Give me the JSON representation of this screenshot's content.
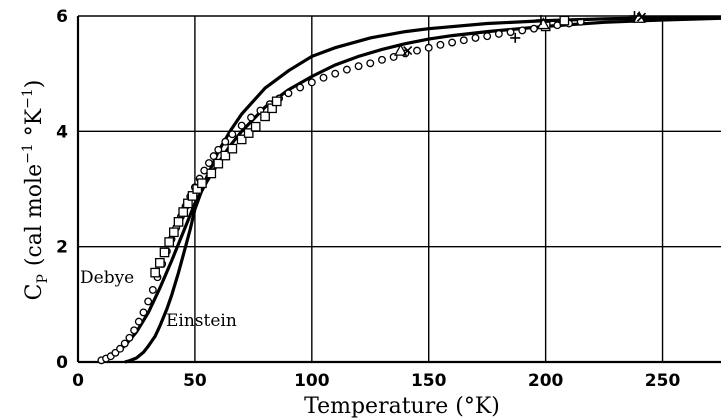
{
  "chart_data": {
    "type": "scatter",
    "title": "",
    "xlabel": "Temperature (°K)",
    "ylabel": "C",
    "ylabel_subscript": "P",
    "ylabel_units": "(cal mole",
    "ylabel_exp1": "−1",
    "ylabel_mid": " °K",
    "ylabel_exp2": "−1",
    "ylabel_close": ")",
    "xlim": [
      0,
      275
    ],
    "ylim": [
      0,
      6
    ],
    "xticks": [
      0,
      50,
      100,
      150,
      200,
      250
    ],
    "yticks": [
      0,
      2,
      4,
      6
    ],
    "grid": true,
    "curve_labels": {
      "debye": "Debye",
      "einstein": "Einstein"
    },
    "series": [
      {
        "name": "Debye",
        "kind": "line",
        "x": [
          10,
          15,
          20,
          25,
          30,
          35,
          40,
          45,
          50,
          55,
          60,
          65,
          70,
          80,
          90,
          100,
          110,
          120,
          130,
          140,
          150,
          160,
          175,
          200,
          225,
          250,
          275
        ],
        "y": [
          0.04,
          0.12,
          0.28,
          0.52,
          0.85,
          1.28,
          1.75,
          2.25,
          2.75,
          3.12,
          3.45,
          3.75,
          4.0,
          4.42,
          4.72,
          4.95,
          5.15,
          5.3,
          5.42,
          5.52,
          5.6,
          5.66,
          5.73,
          5.82,
          5.89,
          5.93,
          5.96
        ]
      },
      {
        "name": "Einstein",
        "kind": "line",
        "x": [
          20,
          22,
          25,
          28,
          30,
          33,
          35,
          38,
          40,
          43,
          45,
          48,
          50,
          55,
          60,
          65,
          70,
          80,
          90,
          100,
          110,
          125,
          140,
          150,
          175,
          200,
          225,
          250,
          275
        ],
        "y": [
          0.0,
          0.02,
          0.07,
          0.17,
          0.27,
          0.45,
          0.62,
          0.92,
          1.15,
          1.55,
          1.85,
          2.3,
          2.65,
          3.2,
          3.65,
          4.0,
          4.3,
          4.75,
          5.05,
          5.3,
          5.45,
          5.62,
          5.73,
          5.78,
          5.87,
          5.92,
          5.95,
          5.97,
          5.98
        ]
      },
      {
        "name": "circles",
        "kind": "marker",
        "marker": "circle",
        "x": [
          10,
          12,
          14,
          16,
          18,
          20,
          22,
          24,
          26,
          28,
          30,
          32,
          34,
          36,
          38,
          40,
          42,
          44,
          46,
          48,
          50,
          52,
          54,
          56,
          58,
          60,
          63,
          66,
          70,
          74,
          78,
          82,
          86,
          90,
          95,
          100,
          105,
          110,
          115,
          120,
          125,
          130,
          135,
          140,
          145,
          150,
          155,
          160,
          165,
          170,
          175,
          180,
          185,
          190,
          195,
          200,
          205,
          210,
          215
        ],
        "y": [
          0.03,
          0.06,
          0.1,
          0.16,
          0.23,
          0.32,
          0.42,
          0.55,
          0.7,
          0.86,
          1.05,
          1.25,
          1.47,
          1.7,
          1.92,
          2.13,
          2.33,
          2.52,
          2.7,
          2.87,
          3.03,
          3.18,
          3.32,
          3.45,
          3.57,
          3.68,
          3.82,
          3.95,
          4.1,
          4.24,
          4.36,
          4.47,
          4.57,
          4.66,
          4.76,
          4.85,
          4.93,
          5.0,
          5.07,
          5.13,
          5.18,
          5.24,
          5.29,
          5.35,
          5.4,
          5.45,
          5.5,
          5.54,
          5.58,
          5.62,
          5.65,
          5.69,
          5.72,
          5.75,
          5.78,
          5.81,
          5.84,
          5.87,
          5.9
        ]
      },
      {
        "name": "squares",
        "kind": "marker",
        "marker": "square",
        "x": [
          33,
          35,
          37,
          39,
          41,
          43,
          45,
          47,
          49,
          51,
          53,
          57,
          60,
          63,
          66,
          70,
          73,
          76,
          80,
          83,
          85,
          200,
          208
        ],
        "y": [
          1.55,
          1.72,
          1.9,
          2.08,
          2.25,
          2.43,
          2.6,
          2.75,
          2.88,
          3.0,
          3.1,
          3.27,
          3.44,
          3.58,
          3.7,
          3.86,
          3.97,
          4.08,
          4.26,
          4.4,
          4.52,
          5.82,
          5.92
        ]
      },
      {
        "name": "triangles",
        "kind": "marker",
        "marker": "triangle",
        "x": [
          138,
          199,
          240
        ],
        "y": [
          5.4,
          5.86,
          5.97
        ]
      },
      {
        "name": "crosses",
        "kind": "marker",
        "marker": "x",
        "x": [
          141,
          241
        ],
        "y": [
          5.4,
          5.98
        ]
      },
      {
        "name": "plus",
        "kind": "marker",
        "marker": "plus",
        "x": [
          187,
          198,
          238
        ],
        "y": [
          5.62,
          5.93,
          6.0
        ]
      },
      {
        "name": "dash",
        "kind": "marker",
        "marker": "dash",
        "x": [
          213
        ],
        "y": [
          5.94
        ]
      }
    ]
  }
}
